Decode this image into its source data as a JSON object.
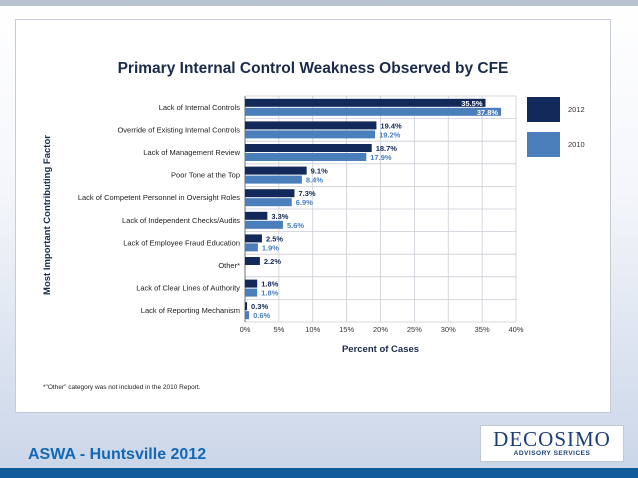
{
  "chart_data": {
    "type": "bar",
    "orientation": "horizontal",
    "title": "Primary Internal Control Weakness Observed by CFE",
    "xlabel": "Percent of Cases",
    "ylabel": "Most Important Contributing Factor",
    "xlim": [
      0,
      40
    ],
    "x_ticks": [
      "0%",
      "5%",
      "10%",
      "15%",
      "20%",
      "25%",
      "30%",
      "35%",
      "40%"
    ],
    "grid": true,
    "legend_position": "right",
    "categories": [
      "Lack of Internal Controls",
      "Override of Existing Internal Controls",
      "Lack of Management Review",
      "Poor Tone at the Top",
      "Lack of Competent Personnel in Oversight Roles",
      "Lack of Independent Checks/Audits",
      "Lack of Employee Fraud Education",
      "Other*",
      "Lack of Clear Lines of Authority",
      "Lack of Reporting Mechanism"
    ],
    "series": [
      {
        "name": "2012",
        "color": "#13295a",
        "values": [
          35.5,
          19.4,
          18.7,
          9.1,
          7.3,
          3.3,
          2.5,
          2.2,
          1.8,
          0.3
        ],
        "labels": [
          "35.5%",
          "19.4%",
          "18.7%",
          "9.1%",
          "7.3%",
          "3.3%",
          "2.5%",
          "2.2%",
          "1.8%",
          "0.3%"
        ]
      },
      {
        "name": "2010",
        "color": "#4a7fbc",
        "values": [
          37.8,
          19.2,
          17.9,
          8.4,
          6.9,
          5.6,
          1.9,
          null,
          1.8,
          0.6
        ],
        "labels": [
          "37.8%",
          "19.2%",
          "17.9%",
          "8.4%",
          "6.9%",
          "5.6%",
          "1.9%",
          "",
          "1.8%",
          "0.6%"
        ]
      }
    ]
  },
  "footnote": "*\"Other\" category was not included in the 2010 Report.",
  "footer": {
    "title": "ASWA - Huntsville 2012",
    "logo_name": "DECOSIMO",
    "logo_tagline": "ADVISORY SERVICES"
  }
}
